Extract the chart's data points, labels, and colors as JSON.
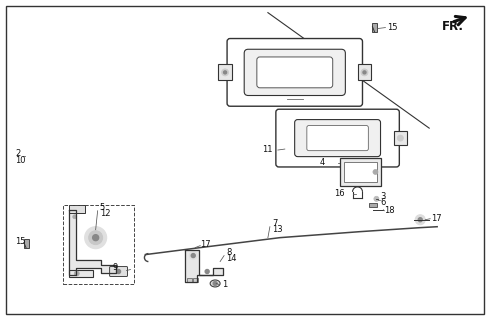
{
  "figsize": [
    4.9,
    3.2
  ],
  "dpi": 100,
  "bg": "white",
  "border": "#222222",
  "lc": "#333333",
  "lw_main": 1.0,
  "lw_thin": 0.6,
  "label_fs": 6.0,
  "fr_fs": 8.5
}
